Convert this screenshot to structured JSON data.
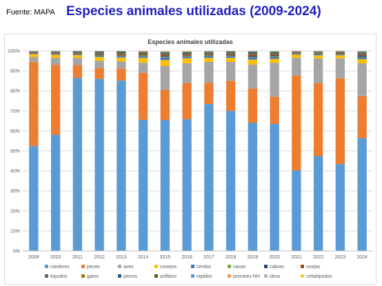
{
  "header": {
    "source": "Fuente: MAPA",
    "title": "Especies animales utilizadas (2009-2024)"
  },
  "chart_data": {
    "type": "bar",
    "stacked": true,
    "title": "Especies animales utilizadas",
    "ylim": [
      0,
      100
    ],
    "y_ticks": [
      "0%",
      "10%",
      "20%",
      "30%",
      "40%",
      "50%",
      "60%",
      "70%",
      "80%",
      "90%",
      "100%"
    ],
    "grid": true,
    "legend_position": "bottom",
    "categories": [
      "2009",
      "2010",
      "2011",
      "2012",
      "2013",
      "2014",
      "2015",
      "2016",
      "2017",
      "2018",
      "2019",
      "2020",
      "2021",
      "2022",
      "2023",
      "2024"
    ],
    "series": [
      {
        "name": "roedores",
        "color": "#5b9bd5",
        "values": [
          52.5,
          58,
          86.5,
          86,
          85,
          65.5,
          65.5,
          66,
          73.5,
          70,
          64,
          63.5,
          40.5,
          47.5,
          43.5,
          56.5
        ]
      },
      {
        "name": "peces",
        "color": "#ed7d31",
        "values": [
          42,
          35,
          6.5,
          5.5,
          6,
          23.5,
          15,
          18,
          10.5,
          15,
          17,
          13.5,
          47.5,
          36.5,
          43,
          21
        ]
      },
      {
        "name": "aves",
        "color": "#a5a5a5",
        "values": [
          2.5,
          3.5,
          3.5,
          3.5,
          3.5,
          5,
          12,
          10,
          10.5,
          9.5,
          12,
          17,
          9,
          12.5,
          10,
          16.5
        ]
      },
      {
        "name": "conejos",
        "color": "#ffc000",
        "values": [
          1.5,
          1.5,
          1.5,
          2,
          2,
          2.5,
          3,
          2.5,
          2,
          2,
          2.5,
          2,
          1.5,
          1.5,
          1.5,
          2
        ]
      },
      {
        "name": "cerdos",
        "color": "#4472c4",
        "values": [
          0.4,
          0.5,
          0.4,
          0.6,
          0.6,
          0.8,
          1.2,
          0.8,
          0.9,
          0.8,
          0.9,
          0.9,
          0.4,
          0.5,
          0.4,
          0.9
        ]
      },
      {
        "name": "vacas",
        "color": "#70ad47",
        "values": [
          0.1,
          0.1,
          0.1,
          0.2,
          0.2,
          0.3,
          0.4,
          0.3,
          0.3,
          0.3,
          0.4,
          0.3,
          0.2,
          0.2,
          0.2,
          0.3
        ]
      },
      {
        "name": "cabras",
        "color": "#264478",
        "values": [
          0.1,
          0.1,
          0.1,
          0.2,
          0.2,
          0.2,
          0.3,
          0.2,
          0.2,
          0.3,
          0.4,
          0.3,
          0.2,
          0.2,
          0.2,
          0.6
        ]
      },
      {
        "name": "ovejas",
        "color": "#9e480e",
        "values": [
          0.3,
          0.4,
          0.5,
          0.6,
          0.6,
          0.6,
          0.8,
          0.6,
          0.6,
          0.6,
          0.8,
          0.6,
          0.3,
          0.3,
          0.4,
          0.6
        ]
      },
      {
        "name": "équidos",
        "color": "#636363",
        "values": [
          0.1,
          0.1,
          0.1,
          0.2,
          0.2,
          0.2,
          0.3,
          0.2,
          0.2,
          0.3,
          0.3,
          0.3,
          0.1,
          0.1,
          0.1,
          0.3
        ]
      },
      {
        "name": "gatos",
        "color": "#997300",
        "values": [
          0.1,
          0.1,
          0.1,
          0.1,
          0.1,
          0.1,
          0.1,
          0.1,
          0.1,
          0.1,
          0.1,
          0.1,
          0.1,
          0.1,
          0.1,
          0.1
        ]
      },
      {
        "name": "perros",
        "color": "#255e91",
        "values": [
          0.2,
          0.2,
          0.3,
          0.3,
          0.3,
          0.3,
          0.4,
          0.4,
          0.3,
          0.3,
          0.4,
          0.3,
          0.1,
          0.2,
          0.2,
          0.4
        ]
      },
      {
        "name": "anfibios",
        "color": "#43682b",
        "values": [
          0.1,
          0.2,
          0.3,
          0.5,
          0.8,
          0.5,
          0.5,
          0.5,
          0.5,
          0.5,
          0.6,
          0.7,
          0.2,
          0.3,
          0.3,
          0.5
        ]
      },
      {
        "name": "reptiles",
        "color": "#698ed0",
        "values": [
          0.05,
          0.05,
          0.05,
          0.05,
          0.05,
          0.05,
          0.1,
          0.05,
          0.05,
          0.05,
          0.1,
          0.1,
          0.05,
          0.05,
          0.05,
          0.1
        ]
      },
      {
        "name": "primates NH",
        "color": "#f1975a",
        "values": [
          0.05,
          0.05,
          0.05,
          0.05,
          0.05,
          0.05,
          0.05,
          0.05,
          0.05,
          0.05,
          0.05,
          0.05,
          0.05,
          0.05,
          0.05,
          0.05
        ]
      },
      {
        "name": "otros",
        "color": "#b7b7b7",
        "values": [
          0.1,
          0.1,
          0.1,
          0.2,
          0.2,
          0.2,
          0.3,
          0.3,
          0.3,
          0.2,
          0.3,
          0.3,
          0.2,
          0.2,
          0.2,
          0.3
        ]
      },
      {
        "name": "cefalópodos",
        "color": "#ffcd33",
        "values": [
          0.0,
          0.0,
          0.0,
          0.0,
          0.0,
          0.15,
          0.15,
          0.15,
          0.0,
          0.0,
          0.0,
          0.0,
          0.0,
          0.0,
          0.0,
          0.0
        ]
      }
    ]
  }
}
